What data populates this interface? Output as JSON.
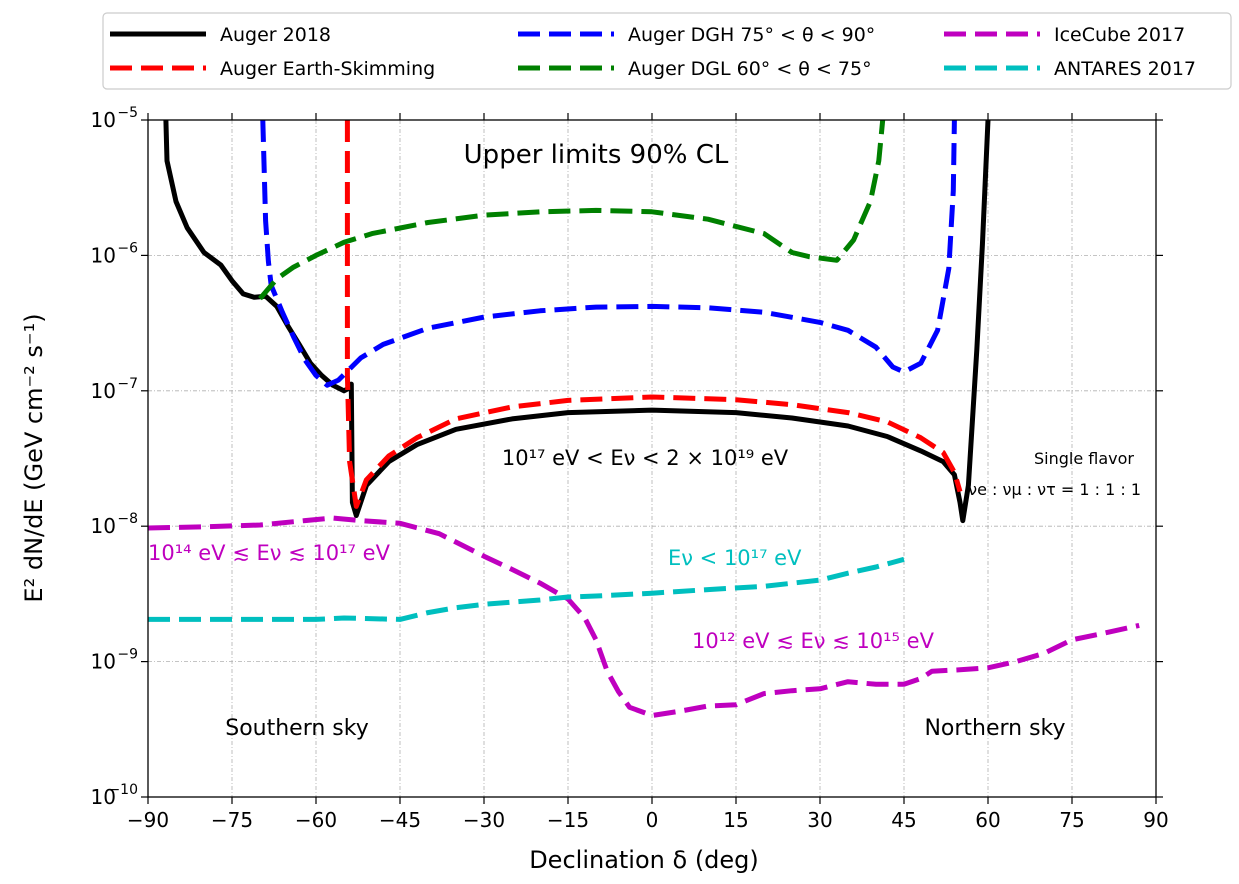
{
  "chart_data": {
    "type": "line",
    "xlabel": "Declination δ (deg)",
    "ylabel": "E² dN/dE (GeV cm⁻² s⁻¹)",
    "xlim": [
      -90,
      90
    ],
    "ylim": [
      1e-10,
      1e-05
    ],
    "yscale": "log",
    "grid": true,
    "xticks": [
      -90,
      -75,
      -60,
      -45,
      -30,
      -15,
      0,
      15,
      30,
      45,
      60,
      75,
      90
    ],
    "xtick_labels": [
      "−90",
      "−75",
      "−60",
      "−45",
      "−30",
      "−15",
      "0",
      "15",
      "30",
      "45",
      "60",
      "75",
      "90"
    ],
    "yticks": [
      {
        "value": 1e-10,
        "base": "10",
        "exp": "−10"
      },
      {
        "value": 1e-09,
        "base": "10",
        "exp": "−9"
      },
      {
        "value": 1e-08,
        "base": "10",
        "exp": "−8"
      },
      {
        "value": 1e-07,
        "base": "10",
        "exp": "−7"
      },
      {
        "value": 1e-06,
        "base": "10",
        "exp": "−6"
      },
      {
        "value": 1e-05,
        "base": "10",
        "exp": "−5"
      }
    ],
    "legend": {
      "position": "top (outside)",
      "entries": [
        {
          "label": "Auger 2018",
          "color": "#000000",
          "dashed": false
        },
        {
          "label": "Auger Earth-Skimming",
          "color": "#ff0000",
          "dashed": true
        },
        {
          "label": "Auger DGH 75° < θ < 90°",
          "color": "#0000ff",
          "dashed": true
        },
        {
          "label": "Auger DGL 60° < θ < 75°",
          "color": "#008000",
          "dashed": true
        },
        {
          "label": "IceCube 2017",
          "color": "#bf00bf",
          "dashed": true
        },
        {
          "label": "ANTARES 2017",
          "color": "#00bfbf",
          "dashed": true
        }
      ]
    },
    "annotations": {
      "title_text": "Upper limits 90% CL",
      "auger_energy_range": "10¹⁷ eV < Eν < 2 × 10¹⁹ eV",
      "icecube_south_range": "10¹⁴ eV ≲ Eν ≲ 10¹⁷ eV",
      "icecube_north_range": "10¹² eV ≲ Eν ≲ 10¹⁵ eV",
      "antares_range": "Eν < 10¹⁷ eV",
      "flavor_line1": "Single flavor",
      "flavor_line2": "νe : νμ : ντ = 1 : 1 : 1",
      "southern_sky": "Southern sky",
      "northern_sky": "Northern sky"
    },
    "series": [
      {
        "name": "Auger 2018",
        "color": "#000000",
        "dash": "solid",
        "points": [
          [
            -86.8,
            1e-05
          ],
          [
            -86.6,
            5e-06
          ],
          [
            -85,
            2.5e-06
          ],
          [
            -83,
            1.6e-06
          ],
          [
            -80,
            1.05e-06
          ],
          [
            -77,
            8.5e-07
          ],
          [
            -75,
            6.5e-07
          ],
          [
            -73,
            5.2e-07
          ],
          [
            -71,
            4.9e-07
          ],
          [
            -69,
            5e-07
          ],
          [
            -67,
            4.2e-07
          ],
          [
            -65,
            3e-07
          ],
          [
            -63,
            2.2e-07
          ],
          [
            -61,
            1.6e-07
          ],
          [
            -59,
            1.3e-07
          ],
          [
            -57,
            1.1e-07
          ],
          [
            -55,
            1e-07
          ],
          [
            -54,
            1.05e-07
          ],
          [
            -53.7,
            1.12e-07
          ],
          [
            -53.5,
            1.5e-08
          ],
          [
            -52.8,
            1.2e-08
          ],
          [
            -51,
            2e-08
          ],
          [
            -47,
            3e-08
          ],
          [
            -42,
            4e-08
          ],
          [
            -35,
            5.2e-08
          ],
          [
            -25,
            6.2e-08
          ],
          [
            -15,
            6.9e-08
          ],
          [
            0,
            7.2e-08
          ],
          [
            15,
            6.9e-08
          ],
          [
            25,
            6.3e-08
          ],
          [
            35,
            5.5e-08
          ],
          [
            42,
            4.6e-08
          ],
          [
            48,
            3.6e-08
          ],
          [
            52,
            3e-08
          ],
          [
            54,
            2.4e-08
          ],
          [
            55,
            1.5e-08
          ],
          [
            55.5,
            1.1e-08
          ],
          [
            56.5,
            2e-08
          ],
          [
            58,
            2e-07
          ],
          [
            59,
            1.2e-06
          ],
          [
            60,
            1e-05
          ]
        ]
      },
      {
        "name": "Auger Earth-Skimming",
        "color": "#ff0000",
        "dash": "dashed",
        "points": [
          [
            -54.4,
            1e-05
          ],
          [
            -54.4,
            1.3e-07
          ],
          [
            -54,
            3e-08
          ],
          [
            -52.8,
            1.4e-08
          ],
          [
            -51,
            2.2e-08
          ],
          [
            -47,
            3.3e-08
          ],
          [
            -42,
            4.5e-08
          ],
          [
            -35,
            6.2e-08
          ],
          [
            -25,
            7.6e-08
          ],
          [
            -15,
            8.5e-08
          ],
          [
            0,
            9e-08
          ],
          [
            15,
            8.6e-08
          ],
          [
            25,
            7.9e-08
          ],
          [
            35,
            6.9e-08
          ],
          [
            42,
            5.9e-08
          ],
          [
            48,
            4.5e-08
          ],
          [
            52,
            3.5e-08
          ],
          [
            54,
            2.5e-08
          ],
          [
            55,
            1.8e-08
          ]
        ]
      },
      {
        "name": "Auger DGH 75° < θ < 90°",
        "color": "#0000ff",
        "dash": "dashed",
        "points": [
          [
            -69.5,
            1e-05
          ],
          [
            -69,
            1.8e-06
          ],
          [
            -68.5,
            9e-07
          ],
          [
            -68,
            6e-07
          ],
          [
            -66,
            3.8e-07
          ],
          [
            -64,
            2.5e-07
          ],
          [
            -62,
            1.7e-07
          ],
          [
            -60,
            1.3e-07
          ],
          [
            -58,
            1.1e-07
          ],
          [
            -56,
            1.2e-07
          ],
          [
            -54,
            1.45e-07
          ],
          [
            -52,
            1.75e-07
          ],
          [
            -48,
            2.2e-07
          ],
          [
            -40,
            2.9e-07
          ],
          [
            -30,
            3.5e-07
          ],
          [
            -20,
            3.9e-07
          ],
          [
            -10,
            4.15e-07
          ],
          [
            0,
            4.2e-07
          ],
          [
            10,
            4.1e-07
          ],
          [
            20,
            3.8e-07
          ],
          [
            30,
            3.2e-07
          ],
          [
            35,
            2.8e-07
          ],
          [
            40,
            2.1e-07
          ],
          [
            43,
            1.5e-07
          ],
          [
            45,
            1.38e-07
          ],
          [
            48,
            1.6e-07
          ],
          [
            51,
            2.8e-07
          ],
          [
            53,
            8e-07
          ],
          [
            53.8,
            3e-06
          ],
          [
            54,
            1e-05
          ]
        ]
      },
      {
        "name": "Auger DGL 60° < θ < 75°",
        "color": "#008000",
        "dash": "dashed",
        "points": [
          [
            -70,
            4.8e-07
          ],
          [
            -67,
            6.7e-07
          ],
          [
            -64,
            8.2e-07
          ],
          [
            -60,
            1e-06
          ],
          [
            -55,
            1.25e-06
          ],
          [
            -50,
            1.45e-06
          ],
          [
            -40,
            1.75e-06
          ],
          [
            -30,
            1.98e-06
          ],
          [
            -20,
            2.1e-06
          ],
          [
            -10,
            2.15e-06
          ],
          [
            0,
            2.1e-06
          ],
          [
            10,
            1.85e-06
          ],
          [
            20,
            1.45e-06
          ],
          [
            25,
            1.05e-06
          ],
          [
            28,
            9.8e-07
          ],
          [
            33,
            9.2e-07
          ],
          [
            36,
            1.3e-06
          ],
          [
            39,
            2.5e-06
          ],
          [
            40.5,
            5e-06
          ],
          [
            41.2,
            1e-05
          ]
        ]
      },
      {
        "name": "IceCube 2017",
        "color": "#bf00bf",
        "dash": "dashed",
        "points": [
          [
            -90,
            9.7e-09
          ],
          [
            -80,
            9.9e-09
          ],
          [
            -70,
            1.02e-08
          ],
          [
            -62,
            1.1e-08
          ],
          [
            -57,
            1.15e-08
          ],
          [
            -52,
            1.1e-08
          ],
          [
            -45,
            1.05e-08
          ],
          [
            -38,
            8.8e-09
          ],
          [
            -30,
            6e-09
          ],
          [
            -25,
            4.8e-09
          ],
          [
            -20,
            3.8e-09
          ],
          [
            -15,
            2.9e-09
          ],
          [
            -12,
            2.1e-09
          ],
          [
            -10,
            1.45e-09
          ],
          [
            -8,
            8.5e-10
          ],
          [
            -6,
            6e-10
          ],
          [
            -4,
            4.6e-10
          ],
          [
            0,
            4e-10
          ],
          [
            5,
            4.3e-10
          ],
          [
            10,
            4.7e-10
          ],
          [
            15,
            4.8e-10
          ],
          [
            20,
            5.8e-10
          ],
          [
            25,
            6.1e-10
          ],
          [
            30,
            6.3e-10
          ],
          [
            35,
            7.1e-10
          ],
          [
            40,
            6.8e-10
          ],
          [
            45,
            6.8e-10
          ],
          [
            48,
            7.5e-10
          ],
          [
            50,
            8.5e-10
          ],
          [
            55,
            8.7e-10
          ],
          [
            60,
            9e-10
          ],
          [
            65,
            1e-09
          ],
          [
            70,
            1.15e-09
          ],
          [
            75,
            1.45e-09
          ],
          [
            80,
            1.6e-09
          ],
          [
            87,
            1.85e-09
          ]
        ]
      },
      {
        "name": "ANTARES 2017",
        "color": "#00bfbf",
        "dash": "dashed",
        "points": [
          [
            -90,
            2.05e-09
          ],
          [
            -80,
            2.05e-09
          ],
          [
            -70,
            2.05e-09
          ],
          [
            -60,
            2.05e-09
          ],
          [
            -55,
            2.1e-09
          ],
          [
            -45,
            2.05e-09
          ],
          [
            -40,
            2.3e-09
          ],
          [
            -35,
            2.5e-09
          ],
          [
            -30,
            2.65e-09
          ],
          [
            -20,
            2.85e-09
          ],
          [
            -15,
            3e-09
          ],
          [
            -10,
            3.05e-09
          ],
          [
            0,
            3.2e-09
          ],
          [
            10,
            3.4e-09
          ],
          [
            20,
            3.6e-09
          ],
          [
            30,
            4e-09
          ],
          [
            35,
            4.5e-09
          ],
          [
            40,
            5e-09
          ],
          [
            45,
            5.7e-09
          ]
        ]
      }
    ]
  }
}
